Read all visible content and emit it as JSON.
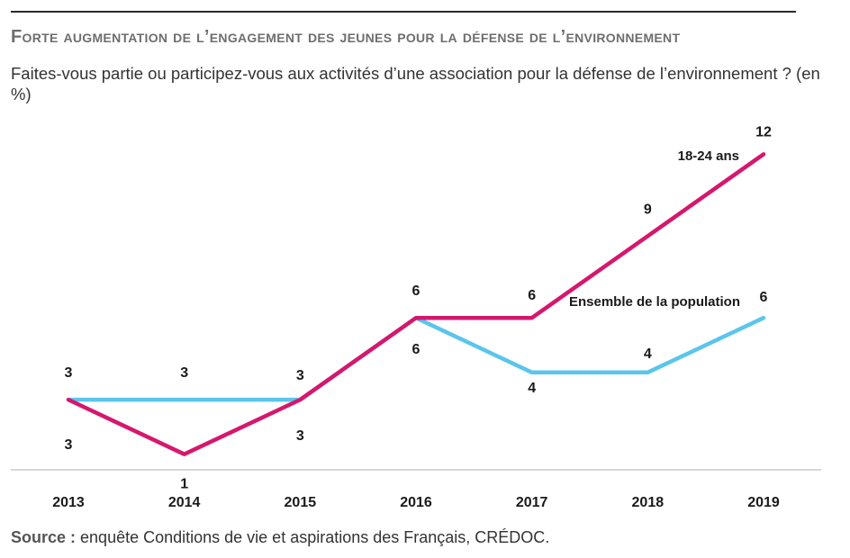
{
  "title": "Forte augmentation de l’engagement des jeunes pour la défense de l’environnement",
  "subtitle": "Faites-vous partie ou participez-vous aux activités d’une association pour la défense de l’environnement ? (en %)",
  "source": {
    "lead": "Source :",
    "text": " enquête Conditions de vie et aspirations des Français, CRÉDOC."
  },
  "colors": {
    "youth": "#d6176e",
    "all": "#5bc5ec",
    "axis": "#c9c9c9"
  },
  "chart_data": {
    "type": "line",
    "title": "Forte augmentation de l’engagement des jeunes pour la défense de l’environnement",
    "categories": [
      "2013",
      "2014",
      "2015",
      "2016",
      "2017",
      "2018",
      "2019"
    ],
    "ylim": [
      0,
      13
    ],
    "grid": false,
    "legend": "inline labels",
    "series": [
      {
        "name": "18-24 ans",
        "key": "youth",
        "values": [
          3,
          1,
          3,
          6,
          6,
          9,
          12
        ],
        "labels": [
          "3",
          "1",
          "3",
          "6",
          "6",
          "9",
          "12"
        ]
      },
      {
        "name": "Ensemble de la population",
        "key": "all",
        "values": [
          3,
          3,
          3,
          6,
          4,
          4,
          6
        ],
        "labels": [
          "3",
          "3",
          "3",
          "6",
          "4",
          "4",
          "6"
        ]
      }
    ]
  }
}
